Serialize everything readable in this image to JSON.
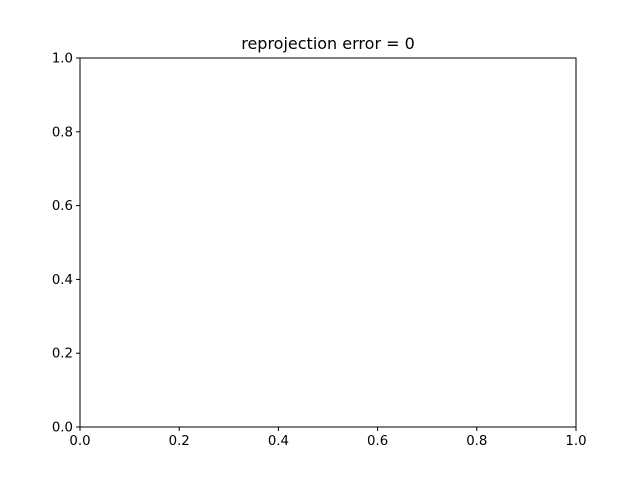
{
  "chart_data": {
    "type": "line",
    "title": "reprojection error = 0",
    "xlabel": "",
    "ylabel": "",
    "xlim": [
      0,
      1
    ],
    "ylim": [
      0,
      1
    ],
    "xticks": [
      0.0,
      0.2,
      0.4,
      0.6,
      0.8,
      1.0
    ],
    "yticks": [
      0.0,
      0.2,
      0.4,
      0.6,
      0.8,
      1.0
    ],
    "xtick_labels": [
      "0.0",
      "0.2",
      "0.4",
      "0.6",
      "0.8",
      "1.0"
    ],
    "ytick_labels": [
      "0.0",
      "0.2",
      "0.4",
      "0.6",
      "0.8",
      "1.0"
    ],
    "grid": false,
    "series": []
  }
}
